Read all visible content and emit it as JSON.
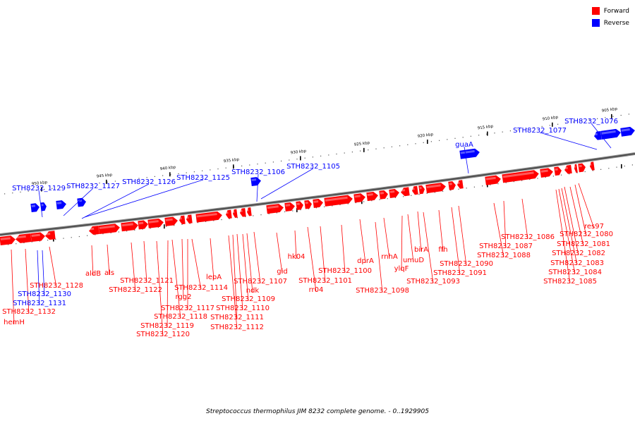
{
  "legend": {
    "forward_label": "Forward",
    "reverse_label": "Reverse"
  },
  "colors": {
    "forward": "#ff0000",
    "reverse": "#0000ff"
  },
  "caption": "Streptococcus thermophilus JIM 8232 complete genome. - 0..1929905",
  "scale_labels": [
    "905 kbp",
    "910 kbp",
    "915 kbp",
    "920 kbp",
    "925 kbp",
    "930 kbp",
    "935 kbp",
    "940 kbp",
    "945 kbp",
    "950 kbp"
  ],
  "reverse_genes": [
    "STH8232_1076",
    "STH8232_1077",
    "guaA",
    "STH8232_1105",
    "STH8232_1106",
    "STH8232_1125",
    "STH8232_1126",
    "STH8232_1127",
    "STH8232_1129",
    "STH8232_1130",
    "STH8232_1131"
  ],
  "forward_genes": [
    "res97",
    "STH8232_1080",
    "STH8232_1081",
    "STH8232_1082",
    "STH8232_1083",
    "STH8232_1084",
    "STH8232_1085",
    "STH8232_1086",
    "STH8232_1087",
    "STH8232_1088",
    "ffh",
    "STH8232_1090",
    "STH8232_1091",
    "birA",
    "STH8232_1093",
    "umuD",
    "ylqF",
    "rnhA",
    "dprA",
    "STH8232_1098",
    "STH8232_1100",
    "STH8232_1101",
    "rr04",
    "hk04",
    "gid",
    "STH8232_1107",
    "ndk",
    "STH8232_1109",
    "STH8232_1110",
    "STH8232_1111",
    "STH8232_1112",
    "lepA",
    "STH8232_1114",
    "rgg2",
    "STH8232_1117",
    "STH8232_1118",
    "STH8232_1119",
    "STH8232_1120",
    "STH8232_1121",
    "STH8232_1122",
    "als",
    "aldB",
    "STH8232_1128",
    "STH8232_1132",
    "hemH"
  ]
}
